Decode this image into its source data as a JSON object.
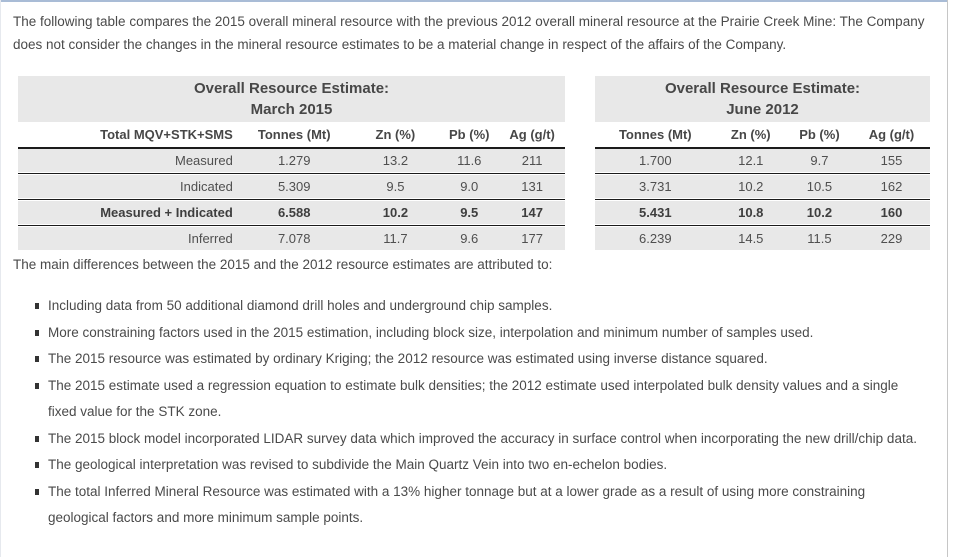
{
  "intro": "The following table compares the 2015 overall mineral resource with the previous 2012 overall mineral resource at the Prairie Creek Mine: The Company does not consider the changes in the mineral resource estimates to be a material change in respect of the affairs of the Company.",
  "tables": [
    {
      "title_line1": "Overall Resource Estimate:",
      "title_line2": "March 2015",
      "columns": [
        "Total MQV+STK+SMS",
        "Tonnes (Mt)",
        "Zn (%)",
        "Pb (%)",
        "Ag (g/t)"
      ],
      "rows": [
        [
          "Measured",
          "1.279",
          "13.2",
          "11.6",
          "211"
        ],
        [
          "Indicated",
          "5.309",
          "9.5",
          "9.0",
          "131"
        ],
        [
          "Measured + Indicated",
          "6.588",
          "10.2",
          "9.5",
          "147"
        ],
        [
          "Inferred",
          "7.078",
          "11.7",
          "9.6",
          "177"
        ]
      ]
    },
    {
      "title_line1": "Overall Resource Estimate:",
      "title_line2": "June 2012",
      "columns": [
        "Tonnes (Mt)",
        "Zn (%)",
        "Pb (%)",
        "Ag (g/t)"
      ],
      "rows": [
        [
          "1.700",
          "12.1",
          "9.7",
          "155"
        ],
        [
          "3.731",
          "10.2",
          "10.5",
          "162"
        ],
        [
          "5.431",
          "10.8",
          "10.2",
          "160"
        ],
        [
          "6.239",
          "14.5",
          "11.5",
          "229"
        ]
      ]
    }
  ],
  "note": "The main differences between the 2015 and the 2012 resource estimates are attributed to:",
  "bullets": [
    "Including data from 50 additional diamond drill holes and underground chip samples.",
    "More constraining factors used in the 2015 estimation, including block size, interpolation and minimum number of samples used.",
    "The 2015 resource was estimated by ordinary Kriging; the 2012 resource was estimated using inverse distance squared.",
    "The 2015 estimate used a regression equation to estimate bulk densities; the 2012 estimate used interpolated bulk density values and a single fixed value for the STK zone.",
    "The 2015 block model incorporated LIDAR survey data which improved the accuracy in surface control when incorporating the new drill/chip data.",
    "The geological interpretation was revised to subdivide the Main Quartz Vein into two en-echelon bodies.",
    "The total Inferred Mineral Resource was estimated with a 13% higher tonnage but at a lower grade as a result of using more constraining geological factors and more minimum sample points."
  ],
  "colors": {
    "top_accent": "#a9bcd6",
    "band_gray": "#e8e8e8",
    "rule_black": "#1b1b1b",
    "text_gray": "#4a4a4a"
  }
}
